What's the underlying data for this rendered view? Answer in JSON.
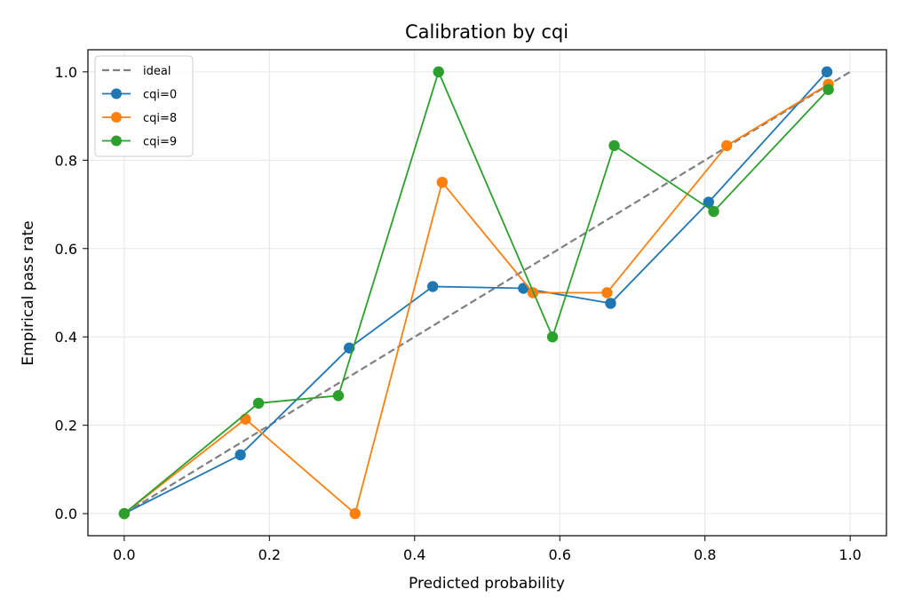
{
  "chart_data": {
    "type": "line",
    "title": "Calibration by cqi",
    "xlabel": "Predicted probability",
    "ylabel": "Empirical pass rate",
    "xlim": [
      -0.05,
      1.05
    ],
    "ylim": [
      -0.05,
      1.05
    ],
    "xticks": [
      0.0,
      0.2,
      0.4,
      0.6,
      0.8,
      1.0
    ],
    "xtick_labels": [
      "0.0",
      "0.2",
      "0.4",
      "0.6",
      "0.8",
      "1.0"
    ],
    "yticks": [
      0.0,
      0.2,
      0.4,
      0.6,
      0.8,
      1.0
    ],
    "ytick_labels": [
      "0.0",
      "0.2",
      "0.4",
      "0.6",
      "0.8",
      "1.0"
    ],
    "grid": true,
    "legend_position": "top-left",
    "reference_line": {
      "name": "ideal",
      "style": "dashed",
      "color": "#7f7f7f",
      "x": [
        0,
        1
      ],
      "y": [
        0,
        1
      ]
    },
    "series": [
      {
        "name": "cqi=0",
        "color": "#1f77b4",
        "x": [
          0.0,
          0.16,
          0.31,
          0.425,
          0.55,
          0.67,
          0.805,
          0.968
        ],
        "y": [
          0.0,
          0.133,
          0.375,
          0.514,
          0.51,
          0.476,
          0.705,
          1.0
        ]
      },
      {
        "name": "cqi=8",
        "color": "#ff7f0e",
        "x": [
          0.0,
          0.167,
          0.318,
          0.438,
          0.563,
          0.665,
          0.83,
          0.97
        ],
        "y": [
          0.0,
          0.214,
          0.0,
          0.75,
          0.5,
          0.5,
          0.833,
          0.972
        ]
      },
      {
        "name": "cqi=9",
        "color": "#2ca02c",
        "x": [
          0.0,
          0.185,
          0.295,
          0.433,
          0.59,
          0.675,
          0.812,
          0.97
        ],
        "y": [
          0.0,
          0.25,
          0.267,
          1.0,
          0.4,
          0.833,
          0.684,
          0.96
        ]
      }
    ]
  }
}
